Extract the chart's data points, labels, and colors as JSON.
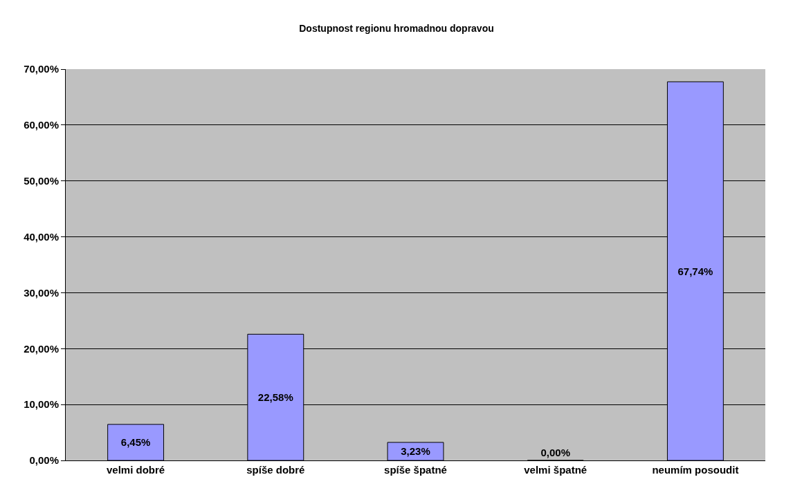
{
  "chart_data": {
    "type": "bar",
    "title": "Dostupnost regionu hromadnou dopravou",
    "categories": [
      "velmi dobré",
      "spíše dobré",
      "spíše špatné",
      "velmi špatné",
      "neumím posoudit"
    ],
    "values": [
      6.45,
      22.58,
      3.23,
      0.0,
      67.74
    ],
    "value_labels": [
      "6,45%",
      "22,58%",
      "3,23%",
      "0,00%",
      "67,74%"
    ],
    "color": "#9999ff",
    "ylim": [
      0,
      70
    ],
    "yticks": [
      {
        "value": 0,
        "label": "0,00%"
      },
      {
        "value": 10,
        "label": "10,00%"
      },
      {
        "value": 20,
        "label": "20,00%"
      },
      {
        "value": 30,
        "label": "30,00%"
      },
      {
        "value": 40,
        "label": "40,00%"
      },
      {
        "value": 50,
        "label": "50,00%"
      },
      {
        "value": 60,
        "label": "60,00%"
      },
      {
        "value": 70,
        "label": "70,00%"
      }
    ],
    "grid": "y",
    "legend": false
  }
}
